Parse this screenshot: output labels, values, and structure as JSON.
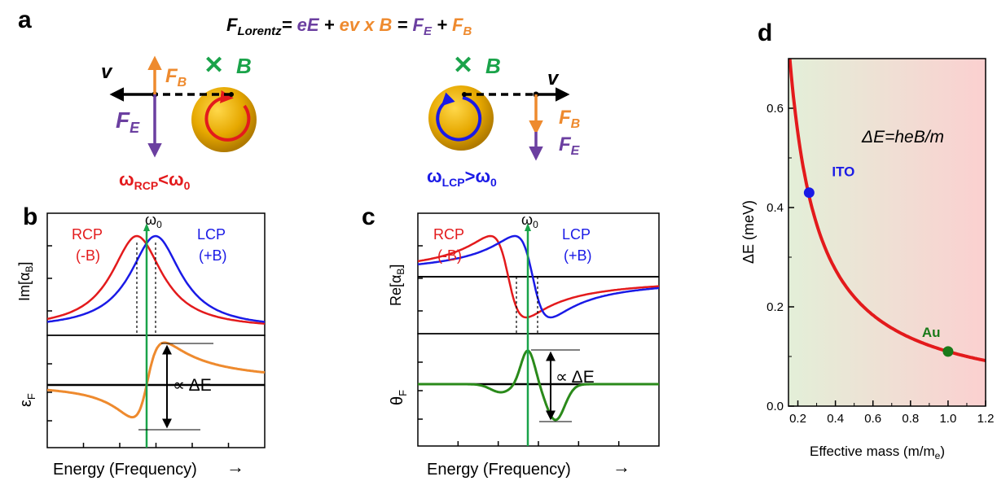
{
  "panel_labels": {
    "a": "a",
    "b": "b",
    "c": "c",
    "d": "d"
  },
  "colors": {
    "purple": "#6b3fa0",
    "orange": "#ee8a2e",
    "green": "#1aa34a",
    "red": "#e31a1c",
    "blue": "#1a1ae6",
    "gold": "#d9a200",
    "ito_blue": "#1a1ae6",
    "au_green": "#1a7a1a",
    "curve_green": "#2a8a1a"
  },
  "panel_a": {
    "equation": {
      "f": "F",
      "lorentz": "Lorentz",
      "eq1": "= ",
      "eE": "eE",
      "plus1": " + ",
      "evxB": "ev x B",
      "eq2": " = ",
      "FE_F": "F",
      "FE_sub": "E",
      "plus2": " + ",
      "FB_F": "F",
      "FB_sub": "B"
    },
    "left": {
      "v": "v",
      "FB_F": "F",
      "FB_sub": "B",
      "FE_F": "F",
      "FE_sub": "E",
      "B_cross": "✕",
      "B": "B",
      "freq_w": "ω",
      "freq_sub": "RCP",
      "freq_rel": "<ω",
      "freq_sub0": "0"
    },
    "right": {
      "v": "v",
      "FB_F": "F",
      "FB_sub": "B",
      "FE_F": "F",
      "FE_sub": "E",
      "B_cross": "✕",
      "B": "B",
      "freq_w": "ω",
      "freq_sub": "LCP",
      "freq_rel": ">ω",
      "freq_sub0": "0"
    }
  },
  "panel_b": {
    "rcp_label": "RCP",
    "rcp_field": "(-B)",
    "lcp_label": "LCP",
    "lcp_field": "(+B)",
    "omega0": "ω",
    "omega0_sub": "0",
    "ylabel_top_pre": "Im[α",
    "ylabel_top_sub": "B",
    "ylabel_top_post": "]",
    "ylabel_bottom": "ε",
    "ylabel_bottom_sub": "F",
    "prop": "∝ ΔE",
    "xlabel": "Energy (Frequency)",
    "arrow": "→"
  },
  "panel_c": {
    "rcp_label": "RCP",
    "rcp_field": "(-B)",
    "lcp_label": "LCP",
    "lcp_field": "(+B)",
    "omega0": "ω",
    "omega0_sub": "0",
    "ylabel_top_pre": "Re[α",
    "ylabel_top_sub": "B",
    "ylabel_top_post": "]",
    "ylabel_bottom": "θ",
    "ylabel_bottom_sub": "F",
    "prop": "∝ ΔE",
    "xlabel": "Energy (Frequency)",
    "arrow": "→"
  },
  "chart_data": {
    "type": "line",
    "title": "",
    "xlabel": "Effective mass (m/m",
    "xlabel_sub": "e",
    "xlabel_close": ")",
    "ylabel": "ΔE (meV)",
    "xlim": [
      0.15,
      1.2
    ],
    "ylim": [
      0.0,
      0.7
    ],
    "xticks": [
      "0.2",
      "0.4",
      "0.6",
      "0.8",
      "1.0",
      "1.2"
    ],
    "yticks": [
      "0.0",
      "0.2",
      "0.4",
      "0.6"
    ],
    "annotation": "ΔE=heB/m",
    "curve": {
      "formula": "y = 0.11 / x",
      "color": "#e31a1c"
    },
    "points": [
      {
        "label": "ITO",
        "x": 0.26,
        "y": 0.43,
        "color": "#1a1ae6"
      },
      {
        "label": "Au",
        "x": 1.0,
        "y": 0.11,
        "color": "#1a7a1a"
      }
    ],
    "background_gradient": {
      "left": "#e3efd8",
      "right": "#fbd0d0"
    }
  }
}
